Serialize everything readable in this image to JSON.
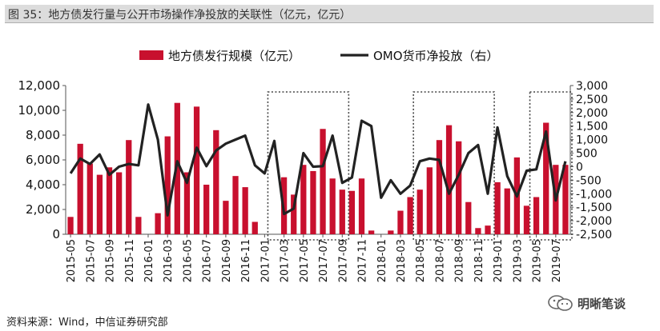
{
  "title": "图 35：地方债发行量与公开市场操作净投放的关联性（亿元，亿元）",
  "source": "资料来源：Wind，中信证券研究部",
  "watermark": "明晰笔谈",
  "chart_data": {
    "type": "bar+line",
    "legend_placement": "top-center",
    "legend": [
      "地方债发行规模（亿元）",
      "OMO货币净投放（右）"
    ],
    "categories": [
      "2015-05",
      "2015-06",
      "2015-07",
      "2015-08",
      "2015-09",
      "2015-10",
      "2015-11",
      "2015-12",
      "2016-01",
      "2016-02",
      "2016-03",
      "2016-04",
      "2016-05",
      "2016-06",
      "2016-07",
      "2016-08",
      "2016-09",
      "2016-10",
      "2016-11",
      "2016-12",
      "2017-01",
      "2017-02",
      "2017-03",
      "2017-04",
      "2017-05",
      "2017-06",
      "2017-07",
      "2017-08",
      "2017-09",
      "2017-10",
      "2017-11",
      "2017-12",
      "2018-01",
      "2018-02",
      "2018-03",
      "2018-04",
      "2018-05",
      "2018-06",
      "2018-07",
      "2018-08",
      "2018-09",
      "2018-10",
      "2018-11",
      "2018-12",
      "2019-01",
      "2019-02",
      "2019-03",
      "2019-04",
      "2019-05",
      "2019-06",
      "2019-07",
      "2019-08"
    ],
    "x_tick_labels": [
      "2015-05",
      "2015-07",
      "2015-09",
      "2015-11",
      "2016-01",
      "2016-03",
      "2016-05",
      "2016-07",
      "2016-09",
      "2016-11",
      "2017-01",
      "2017-03",
      "2017-05",
      "2017-07",
      "2017-09",
      "2017-11",
      "2018-01",
      "2018-03",
      "2018-05",
      "2018-07",
      "2018-09",
      "2018-11",
      "2019-01",
      "2019-03",
      "2019-05",
      "2019-07"
    ],
    "series": [
      {
        "name": "地方债发行规模（亿元）",
        "type": "bar",
        "axis": "left",
        "color": "#c8102e",
        "values": [
          1400,
          7300,
          5700,
          4800,
          5400,
          5000,
          7600,
          1400,
          0,
          1700,
          7900,
          10600,
          5000,
          10300,
          4000,
          8400,
          2700,
          4700,
          3800,
          1000,
          0,
          0,
          4600,
          3200,
          5600,
          5100,
          8500,
          4500,
          3600,
          3500,
          4500,
          300,
          0,
          300,
          1900,
          3000,
          3600,
          5400,
          7600,
          8800,
          7500,
          2600,
          500,
          700,
          4200,
          3700,
          6200,
          2300,
          3000,
          9000,
          5600,
          5600
        ]
      },
      {
        "name": "OMO货币净投放（右）",
        "type": "line",
        "axis": "right",
        "color": "#222222",
        "values": [
          -250,
          300,
          100,
          450,
          -300,
          0,
          100,
          50,
          2300,
          1000,
          -1800,
          200,
          -600,
          700,
          20,
          600,
          850,
          1000,
          1150,
          50,
          -250,
          950,
          -1750,
          -1550,
          500,
          0,
          20,
          1150,
          -600,
          -400,
          1700,
          1500,
          -1150,
          -500,
          -1000,
          -700,
          200,
          300,
          250,
          -1000,
          -300,
          500,
          800,
          -1000,
          1450,
          -350,
          -1100,
          -150,
          -100,
          1300,
          -1250,
          200
        ]
      }
    ],
    "y_left": {
      "min": 0,
      "max": 12000,
      "ticks": [
        0,
        2000,
        4000,
        6000,
        8000,
        10000,
        12000
      ],
      "labels": [
        "0",
        "2,000",
        "4,000",
        "6,000",
        "8,000",
        "10,000",
        "12,000"
      ]
    },
    "y_right": {
      "min": -2500,
      "max": 3000,
      "ticks": [
        -2500,
        -2000,
        -1500,
        -1000,
        -500,
        0,
        500,
        1000,
        1500,
        2000,
        2500,
        3000
      ],
      "labels": [
        "-2,500",
        "-2,000",
        "-1,500",
        "-1,000",
        "-500",
        "0",
        "500",
        "1,000",
        "1,500",
        "2,000",
        "2,500",
        "3,000"
      ]
    },
    "highlight_ranges": [
      {
        "start": "2017-02",
        "end": "2017-09"
      },
      {
        "start": "2018-05",
        "end": "2018-12"
      },
      {
        "start": "2019-05",
        "end": "2019-08"
      }
    ],
    "grid": false
  }
}
